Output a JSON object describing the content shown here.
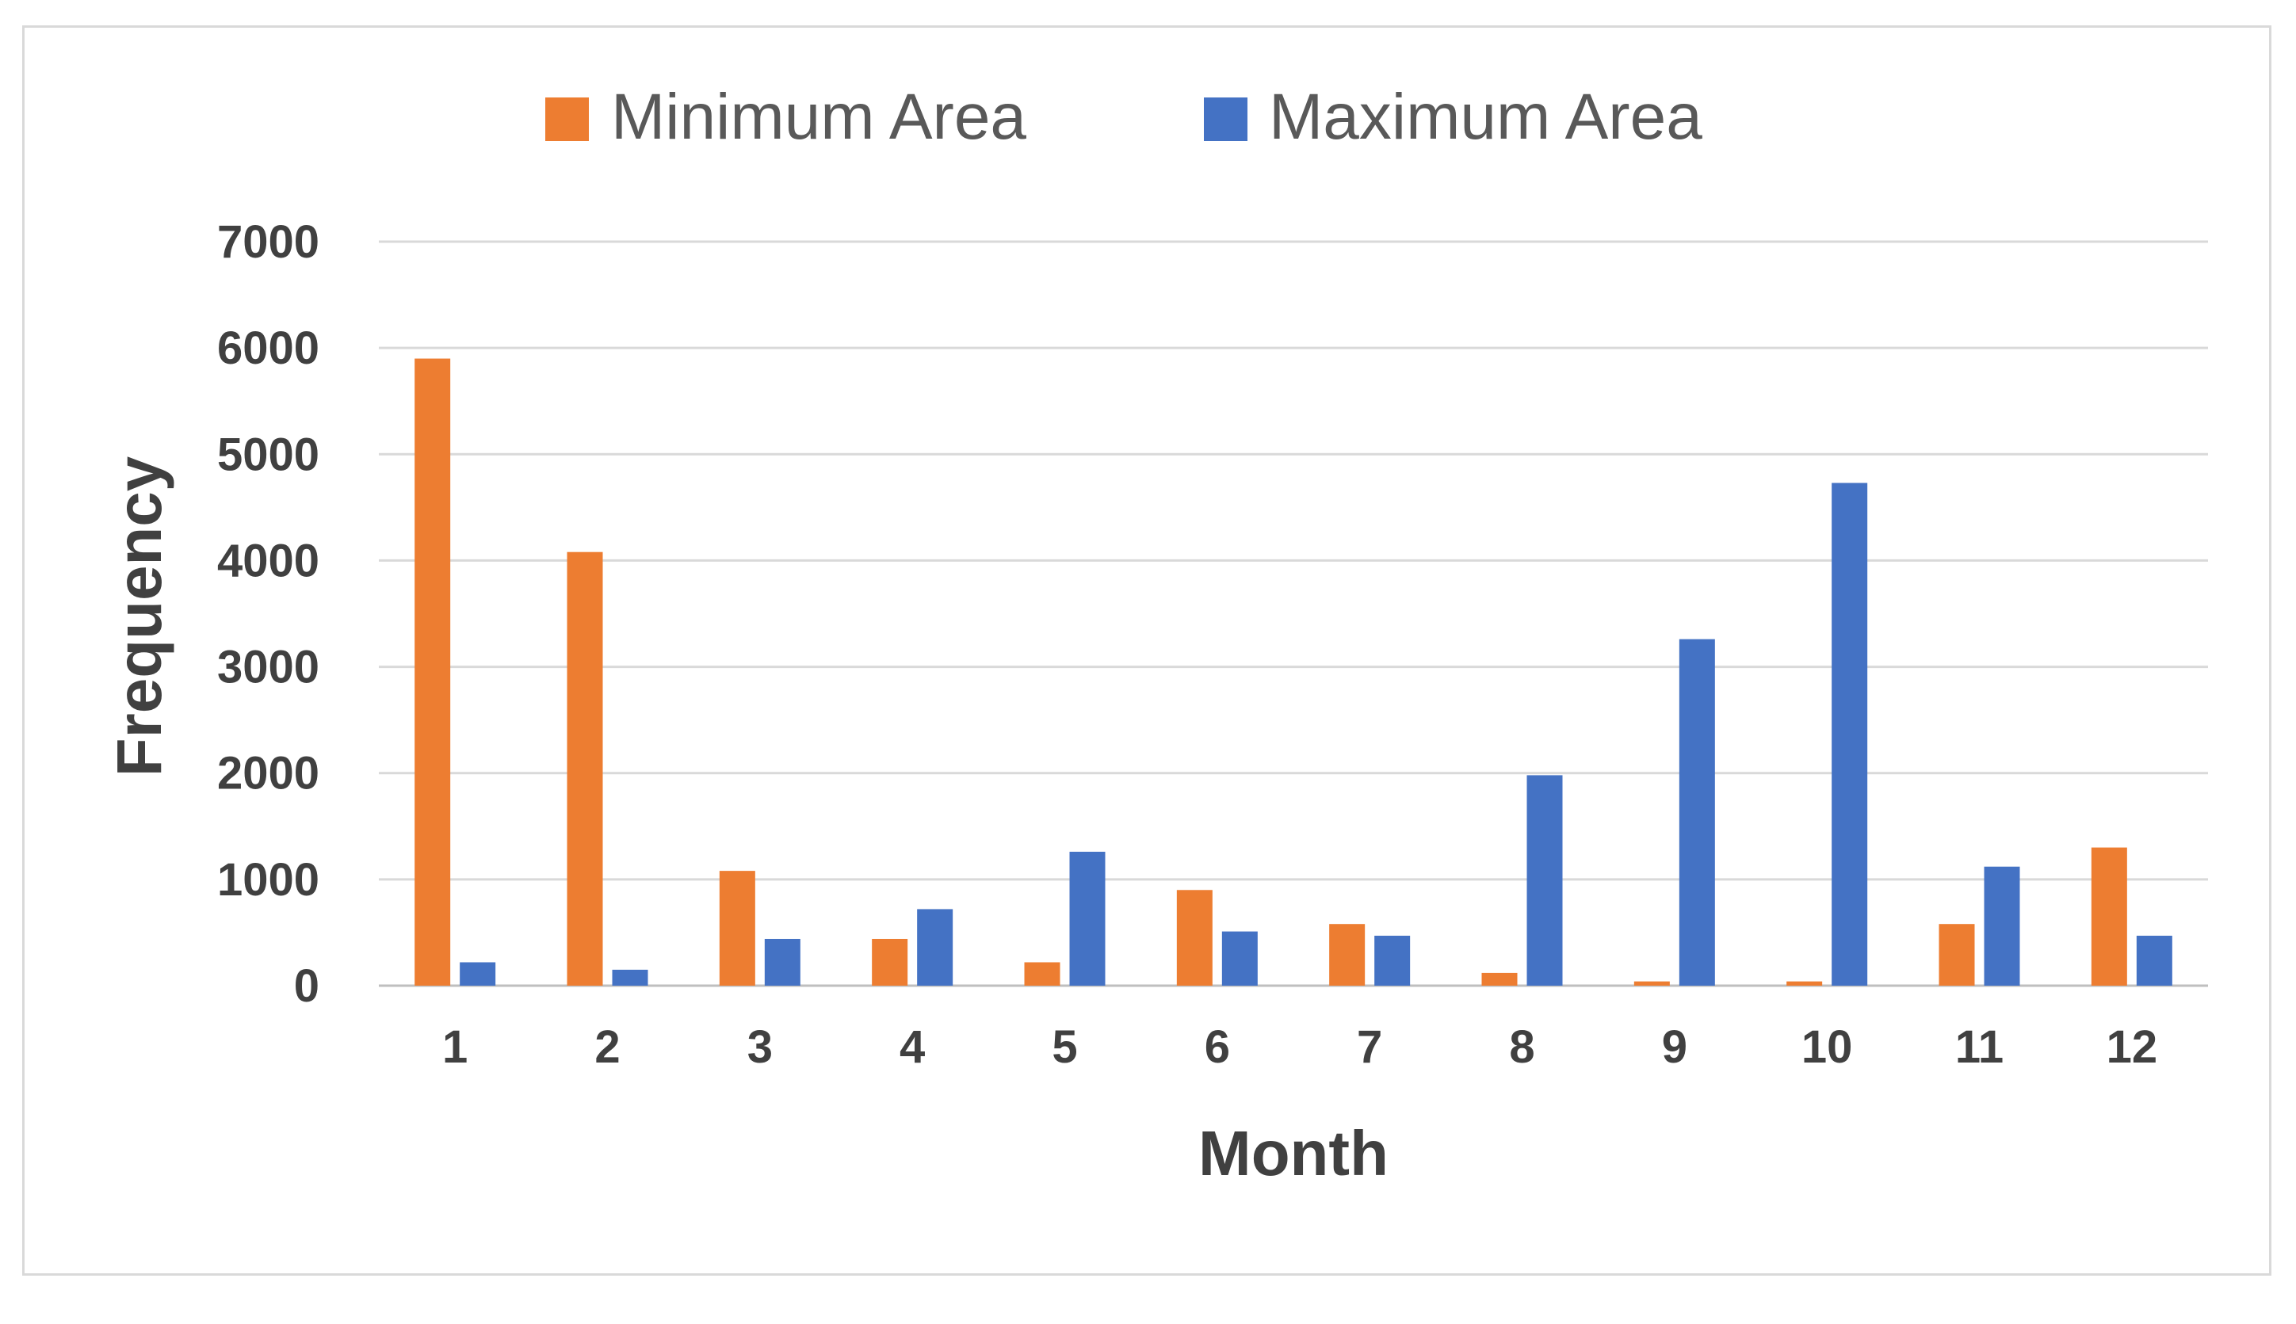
{
  "chart_data": {
    "type": "bar",
    "categories": [
      "1",
      "2",
      "3",
      "4",
      "5",
      "6",
      "7",
      "8",
      "9",
      "10",
      "11",
      "12"
    ],
    "series": [
      {
        "name": "Minimum Area",
        "color": "#ED7D31",
        "values": [
          5900,
          4080,
          1080,
          440,
          220,
          900,
          580,
          120,
          40,
          40,
          580,
          1300
        ]
      },
      {
        "name": "Maximum Area",
        "color": "#4472C4",
        "values": [
          220,
          150,
          440,
          720,
          1260,
          510,
          470,
          1980,
          3260,
          4730,
          1120,
          470
        ]
      }
    ],
    "title": "",
    "xlabel": "Month",
    "ylabel": "Frequency",
    "ylim": [
      0,
      7000
    ],
    "yticks": [
      "0",
      "1000",
      "2000",
      "3000",
      "4000",
      "5000",
      "6000",
      "7000"
    ],
    "grid": true,
    "legend_position": "top-center"
  }
}
